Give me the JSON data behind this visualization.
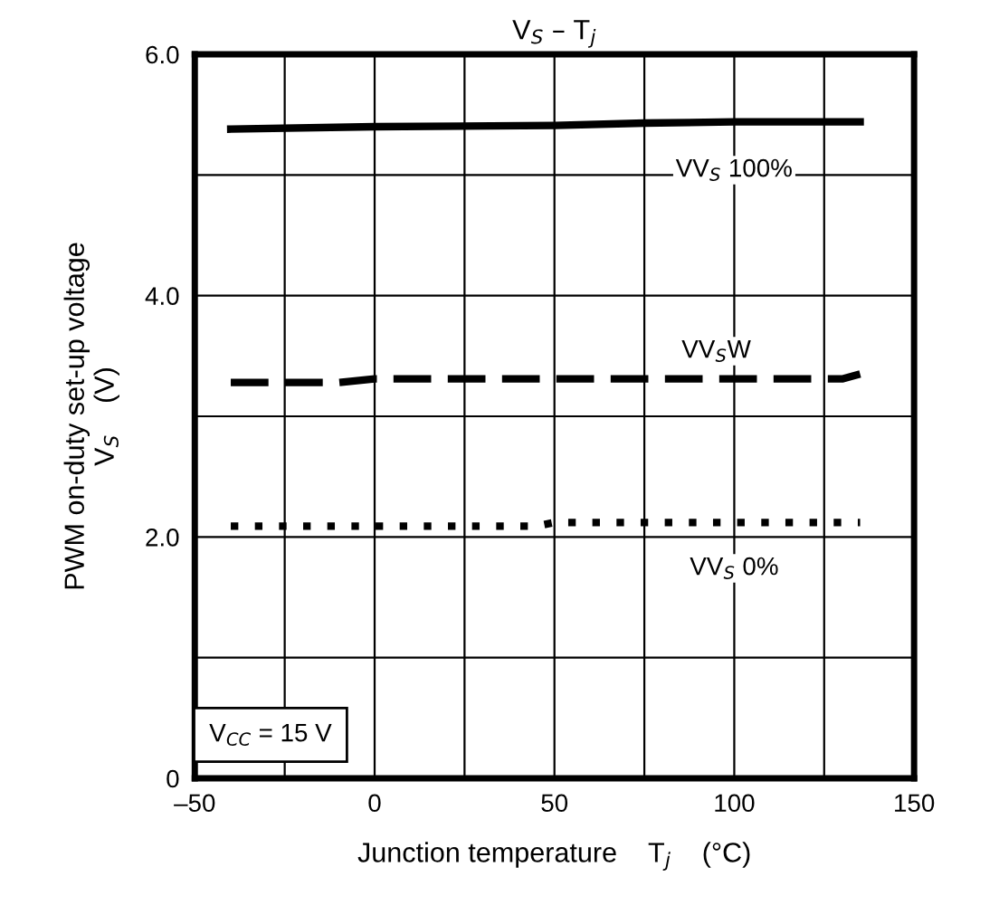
{
  "chart_data": {
    "type": "line",
    "title": "V$_{S}$ – T$_{j}$",
    "xlabel": "Junction temperature    T$_{j}$    (°C)",
    "ylabel": "PWM on-duty set-up voltage\nV$_{S}$    (V)",
    "series": [
      {
        "color": "#000000",
        "line_style": "solid",
        "x": [
          -40,
          0,
          50,
          75,
          100,
          135
        ],
        "values": [
          5.38,
          5.4,
          5.41,
          5.43,
          5.44,
          5.44
        ]
      },
      {
        "color": "#000000",
        "line_style": "dashed",
        "x": [
          -40,
          -10,
          0,
          50,
          100,
          130,
          135
        ],
        "values": [
          3.28,
          3.28,
          3.31,
          3.31,
          3.31,
          3.31,
          3.35
        ]
      },
      {
        "color": "#000000",
        "line_style": "dotted",
        "x": [
          -40,
          0,
          45,
          50,
          100,
          135
        ],
        "values": [
          2.09,
          2.09,
          2.09,
          2.12,
          2.12,
          2.12
        ]
      }
    ],
    "annotations": [
      "VV$_{S}$ 100%",
      "VV$_{S}$W",
      "VV$_{S}$ 0%",
      "V$_{CC}$ = 15 V"
    ],
    "xlim": [
      -50,
      150
    ],
    "ylim": [
      0,
      6
    ],
    "xticks": [
      {
        "value": -50,
        "label": "–50"
      },
      {
        "value": -25,
        "label": null
      },
      0,
      {
        "value": 25,
        "label": null
      },
      50,
      {
        "value": 75,
        "label": null
      },
      100,
      {
        "value": 125,
        "label": null
      },
      150
    ],
    "yticks": [
      0,
      {
        "value": 1,
        "label": null
      },
      {
        "value": 2,
        "label": "2.0"
      },
      {
        "value": 3,
        "label": null
      },
      {
        "value": 4,
        "label": "4.0"
      },
      {
        "value": 5,
        "label": null
      },
      {
        "value": 6,
        "label": "6.0"
      }
    ],
    "grid": true,
    "legend": false
  }
}
